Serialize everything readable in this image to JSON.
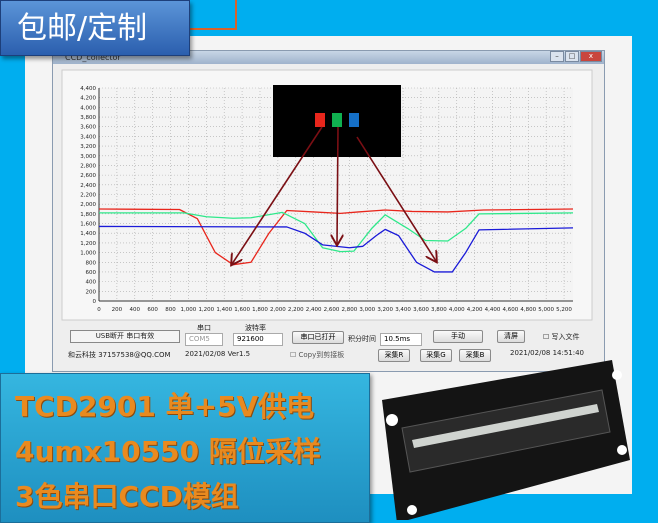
{
  "badge": {
    "text": "包邮/定制"
  },
  "window": {
    "title": "CCD_collector",
    "minimize": "–",
    "maximize": "□",
    "close": "x"
  },
  "controls": {
    "status": "USB断开 串口有效",
    "port_label": "串口",
    "port_value": "COM5",
    "baud_label": "波特率",
    "baud_value": "921600",
    "open_button": "串口已打开",
    "integration_label": "积分时间",
    "integration_value": "10.5ms",
    "manual_button": "手动",
    "clear_button": "清屏",
    "write_file_label": "写入文件",
    "company": "和云科技 37157538@QQ.COM",
    "version": "2021/02/08 Ver1.5",
    "copy_label": "Copy到剪接板",
    "collect_r": "采集R",
    "collect_g": "采集G",
    "collect_b": "采集B",
    "datetime": "2021/02/08 14:51:40"
  },
  "colors": {
    "background": "#00aeef",
    "red": "#e8261c",
    "green": "#2ee88a",
    "blue": "#1a1ad8",
    "arrow": "#7a0f14",
    "promo_text": "#e98a1f"
  },
  "chart_data": {
    "type": "line",
    "grid": true,
    "xlim": [
      0,
      5300
    ],
    "ylim": [
      0,
      4400
    ],
    "xticks": [
      0,
      200,
      400,
      600,
      800,
      1000,
      1200,
      1400,
      1600,
      1800,
      2000,
      2200,
      2400,
      2600,
      2800,
      3000,
      3200,
      3400,
      3600,
      3800,
      4000,
      4200,
      4400,
      4600,
      4800,
      5000,
      5200
    ],
    "yticks": [
      0,
      200,
      400,
      600,
      800,
      1000,
      1200,
      1400,
      1600,
      1800,
      2000,
      2200,
      2400,
      2600,
      2800,
      3000,
      3200,
      3400,
      3600,
      3800,
      4000,
      4200,
      4400
    ],
    "series": [
      {
        "color": "#e8261c",
        "x": [
          0,
          900,
          1100,
          1300,
          1500,
          1700,
          1900,
          2100,
          2400,
          2700,
          2900,
          3200,
          3500,
          3900,
          4300,
          5300
        ],
        "y": [
          1900,
          1890,
          1700,
          1000,
          750,
          800,
          1400,
          1870,
          1840,
          1810,
          1840,
          1880,
          1850,
          1840,
          1880,
          1900
        ]
      },
      {
        "color": "#2ee88a",
        "x": [
          0,
          950,
          1200,
          1500,
          1700,
          2050,
          2300,
          2500,
          2700,
          2850,
          3050,
          3200,
          3450,
          3650,
          3900,
          4100,
          4250,
          5300
        ],
        "y": [
          1820,
          1820,
          1740,
          1710,
          1720,
          1830,
          1600,
          1100,
          1020,
          1030,
          1500,
          1780,
          1500,
          1250,
          1240,
          1500,
          1800,
          1820
        ]
      },
      {
        "color": "#1a1ad8",
        "x": [
          0,
          2100,
          2300,
          2500,
          2800,
          2950,
          3100,
          3200,
          3350,
          3550,
          3750,
          3950,
          4100,
          4250,
          5300
        ],
        "y": [
          1540,
          1530,
          1400,
          1160,
          1100,
          1130,
          1350,
          1480,
          1350,
          800,
          600,
          600,
          1000,
          1470,
          1510
        ]
      }
    ]
  },
  "promo": {
    "line1": "TCD2901 单+5V供电",
    "line2": "4umx10550 隔位采样",
    "line3": "3色串口CCD模组"
  }
}
